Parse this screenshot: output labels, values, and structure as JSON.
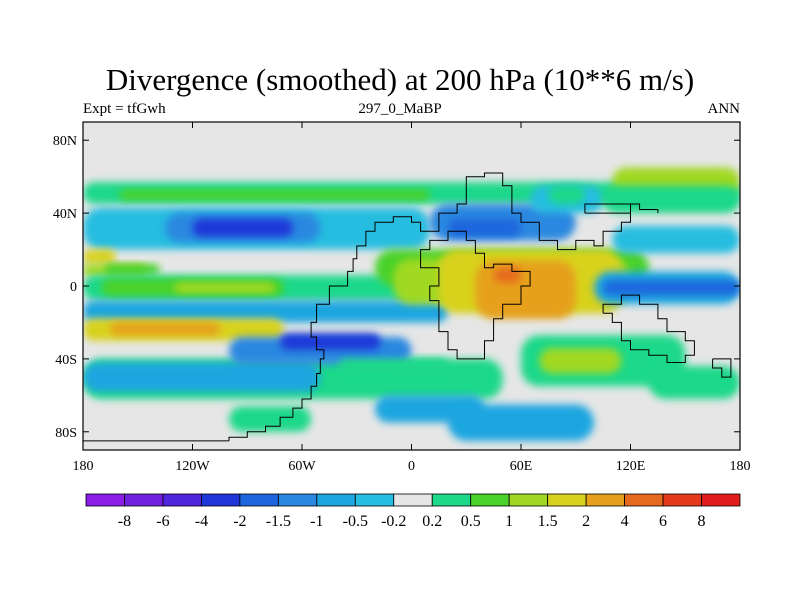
{
  "chart_data": {
    "type": "contour-map",
    "title": "Divergence (smoothed) at 200 hPa (10**6 m/s)",
    "left_label": "Expt = tfGwh",
    "center_label": "297_0_MaBP",
    "right_label": "ANN",
    "x_ticks": [
      {
        "value": -180,
        "label": "180"
      },
      {
        "value": -120,
        "label": "120W"
      },
      {
        "value": -60,
        "label": "60W"
      },
      {
        "value": 0,
        "label": "0"
      },
      {
        "value": 60,
        "label": "60E"
      },
      {
        "value": 120,
        "label": "120E"
      },
      {
        "value": 180,
        "label": "180"
      }
    ],
    "y_ticks": [
      {
        "value": 80,
        "label": "80N"
      },
      {
        "value": 40,
        "label": "40N"
      },
      {
        "value": 0,
        "label": "0"
      },
      {
        "value": -40,
        "label": "40S"
      },
      {
        "value": -80,
        "label": "80S"
      }
    ],
    "xlim": [
      -180,
      180
    ],
    "ylim": [
      -90,
      90
    ],
    "colorbar": {
      "levels": [
        "-8",
        "-6",
        "-4",
        "-2",
        "-1.5",
        "-1",
        "-0.5",
        "-0.2",
        "0.2",
        "0.5",
        "1",
        "1.5",
        "2",
        "4",
        "6",
        "8"
      ],
      "colors": [
        "#8a1ee8",
        "#7120e0",
        "#4f26db",
        "#1f37d8",
        "#1d66dd",
        "#2b88e0",
        "#1ea6e0",
        "#26bde0",
        "#e6e6e6",
        "#1ed88a",
        "#4ad22a",
        "#a0d824",
        "#d8d21e",
        "#e6a01e",
        "#e66a1e",
        "#e63a1e",
        "#e01e1e"
      ]
    },
    "regions": [
      {
        "level": 8,
        "lon": -180,
        "lat": -90,
        "w": 360,
        "h": 180
      },
      {
        "level": 9,
        "lon": -180,
        "lat": 45,
        "w": 360,
        "h": 12
      },
      {
        "level": 10,
        "lon": -160,
        "lat": 47,
        "w": 170,
        "h": 6
      },
      {
        "level": 7,
        "lon": -180,
        "lat": 20,
        "w": 190,
        "h": 23
      },
      {
        "level": 5,
        "lon": -135,
        "lat": 24,
        "w": 85,
        "h": 16
      },
      {
        "level": 3,
        "lon": -120,
        "lat": 27,
        "w": 55,
        "h": 10
      },
      {
        "level": 12,
        "lon": -180,
        "lat": 12,
        "w": 18,
        "h": 8
      },
      {
        "level": 11,
        "lon": -180,
        "lat": 5,
        "w": 35,
        "h": 7
      },
      {
        "level": 10,
        "lon": -168,
        "lat": 6,
        "w": 30,
        "h": 6
      },
      {
        "level": 9,
        "lon": -180,
        "lat": -8,
        "w": 190,
        "h": 14
      },
      {
        "level": 10,
        "lon": -170,
        "lat": -6,
        "w": 100,
        "h": 10
      },
      {
        "level": 11,
        "lon": -130,
        "lat": -4,
        "w": 55,
        "h": 6
      },
      {
        "level": 6,
        "lon": -180,
        "lat": -20,
        "w": 200,
        "h": 12
      },
      {
        "level": 12,
        "lon": -180,
        "lat": -30,
        "w": 110,
        "h": 12
      },
      {
        "level": 13,
        "lon": -165,
        "lat": -27,
        "w": 60,
        "h": 7
      },
      {
        "level": 9,
        "lon": -180,
        "lat": -62,
        "w": 230,
        "h": 22
      },
      {
        "level": 6,
        "lon": -180,
        "lat": -58,
        "w": 130,
        "h": 16
      },
      {
        "level": 5,
        "lon": -100,
        "lat": -43,
        "w": 100,
        "h": 15
      },
      {
        "level": 3,
        "lon": -72,
        "lat": -35,
        "w": 55,
        "h": 9
      },
      {
        "level": 9,
        "lon": -100,
        "lat": -80,
        "w": 45,
        "h": 14
      },
      {
        "level": 6,
        "lon": -20,
        "lat": -75,
        "w": 60,
        "h": 15
      },
      {
        "level": 9,
        "lon": -40,
        "lat": -48,
        "w": 60,
        "h": 8
      },
      {
        "level": 10,
        "lon": -20,
        "lat": 0,
        "w": 150,
        "h": 20
      },
      {
        "level": 11,
        "lon": -10,
        "lat": -10,
        "w": 130,
        "h": 25
      },
      {
        "level": 12,
        "lon": 15,
        "lat": -15,
        "w": 100,
        "h": 35
      },
      {
        "level": 13,
        "lon": 35,
        "lat": -18,
        "w": 55,
        "h": 32
      },
      {
        "level": 14,
        "lon": 45,
        "lat": 2,
        "w": 15,
        "h": 8
      },
      {
        "level": 5,
        "lon": 10,
        "lat": 25,
        "w": 80,
        "h": 20
      },
      {
        "level": 4,
        "lon": 20,
        "lat": 27,
        "w": 40,
        "h": 10
      },
      {
        "level": 7,
        "lon": 65,
        "lat": 40,
        "w": 40,
        "h": 15
      },
      {
        "level": 9,
        "lon": 75,
        "lat": 45,
        "w": 20,
        "h": 10
      },
      {
        "level": 7,
        "lon": 110,
        "lat": 18,
        "w": 70,
        "h": 15
      },
      {
        "level": 11,
        "lon": 110,
        "lat": 50,
        "w": 70,
        "h": 15
      },
      {
        "level": 9,
        "lon": 105,
        "lat": 40,
        "w": 75,
        "h": 15
      },
      {
        "level": 6,
        "lon": 100,
        "lat": -10,
        "w": 80,
        "h": 18
      },
      {
        "level": 4,
        "lon": 105,
        "lat": -5,
        "w": 75,
        "h": 8
      },
      {
        "level": 9,
        "lon": 60,
        "lat": -55,
        "w": 90,
        "h": 28
      },
      {
        "level": 11,
        "lon": 70,
        "lat": -48,
        "w": 45,
        "h": 14
      },
      {
        "level": 6,
        "lon": 20,
        "lat": -85,
        "w": 80,
        "h": 20
      },
      {
        "level": 9,
        "lon": 130,
        "lat": -62,
        "w": 50,
        "h": 18
      }
    ]
  }
}
